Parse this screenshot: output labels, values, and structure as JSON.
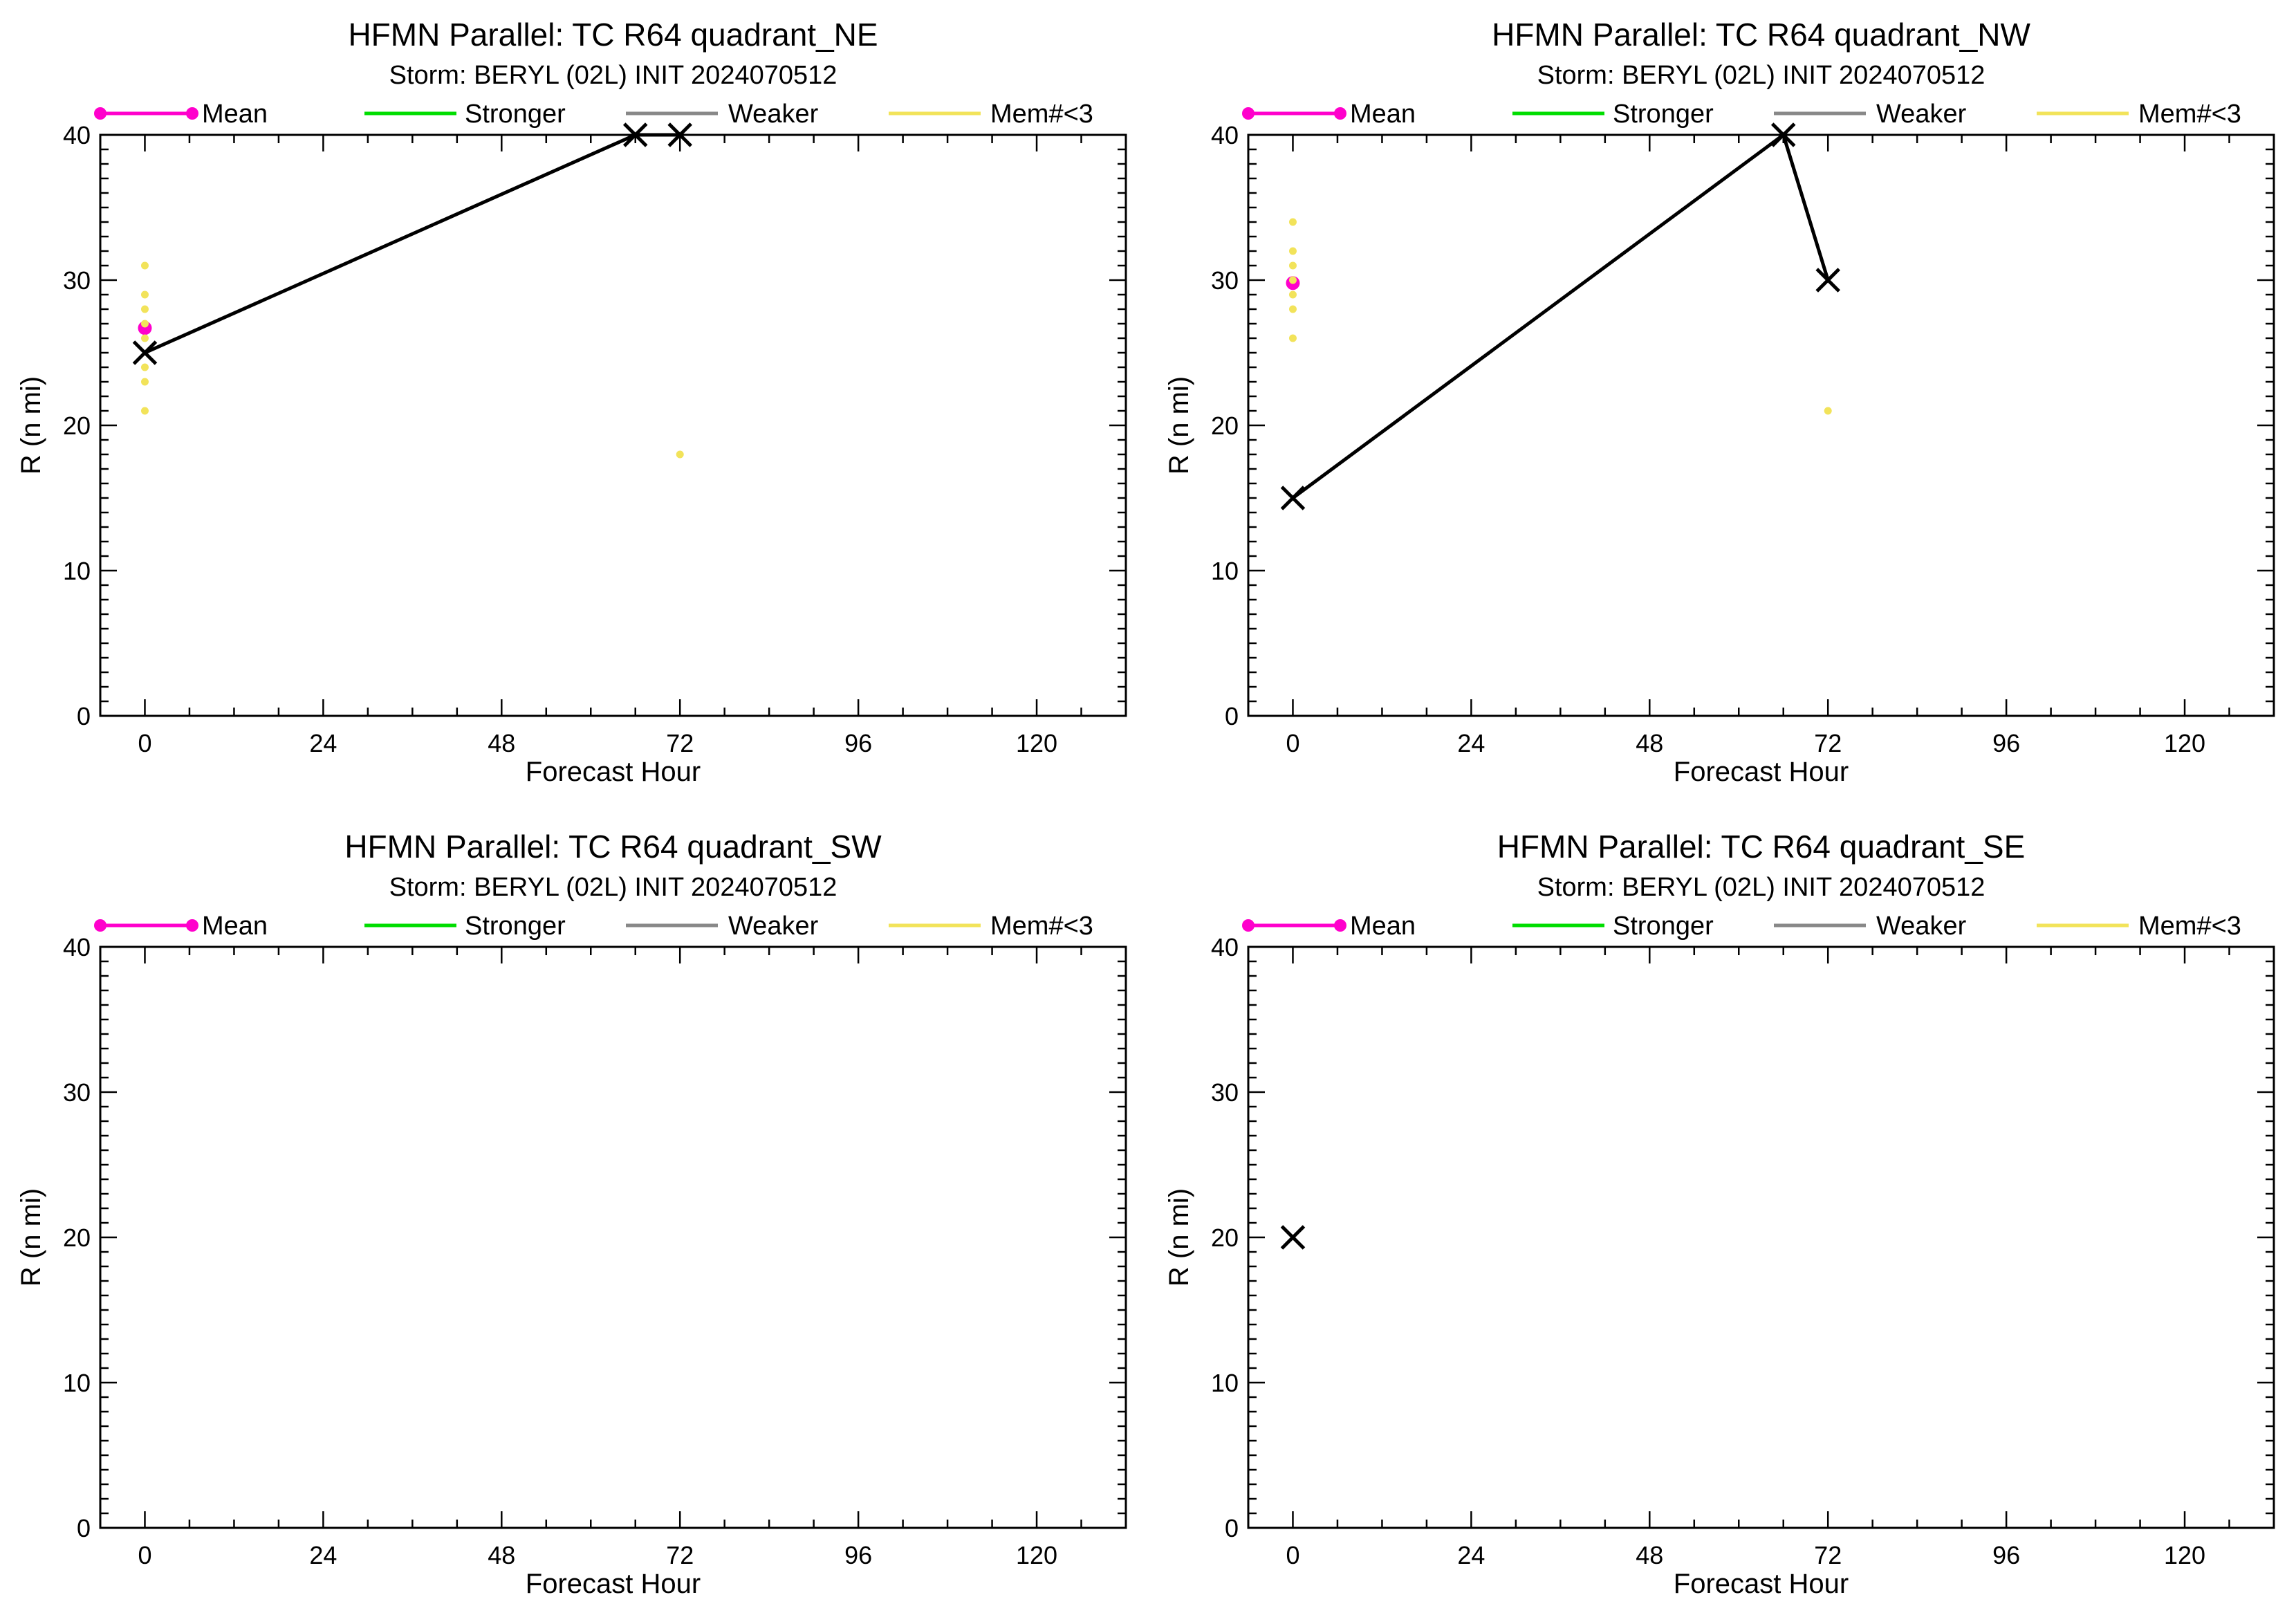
{
  "colors": {
    "mean": "#ff00cc",
    "stronger": "#00dd00",
    "weaker": "#888888",
    "members": "#f2e35a",
    "best_track": "#000000"
  },
  "legend": {
    "mean": "Mean",
    "stronger": "Stronger",
    "weaker": "Weaker",
    "members": "Mem#<3"
  },
  "chart_data": [
    {
      "type": "line",
      "title": "HFMN Parallel: TC  R64 quadrant_NE",
      "subtitle": "Storm: BERYL (02L) INIT 2024070512",
      "xlabel": "Forecast Hour",
      "ylabel": "R (n mi)",
      "xlim": [
        -6,
        132
      ],
      "ylim": [
        0,
        40
      ],
      "xticks": [
        0,
        24,
        48,
        72,
        96,
        120
      ],
      "yticks": [
        0,
        10,
        20,
        30,
        40
      ],
      "series": [
        {
          "name": "Mean",
          "x": [
            0
          ],
          "y": [
            26.7
          ]
        },
        {
          "name": "Mem#<3",
          "x": [
            0,
            0,
            0,
            0,
            0,
            0,
            0,
            0,
            72
          ],
          "y": [
            31,
            29,
            28,
            27,
            26,
            24,
            23,
            21,
            18
          ]
        },
        {
          "x": [
            0,
            66,
            72
          ],
          "y": [
            25,
            40,
            40
          ]
        }
      ]
    },
    {
      "type": "line",
      "title": "HFMN Parallel: TC  R64 quadrant_NW",
      "subtitle": "Storm: BERYL (02L) INIT 2024070512",
      "xlabel": "Forecast Hour",
      "ylabel": "R (n mi)",
      "xlim": [
        -6,
        132
      ],
      "ylim": [
        0,
        40
      ],
      "xticks": [
        0,
        24,
        48,
        72,
        96,
        120
      ],
      "yticks": [
        0,
        10,
        20,
        30,
        40
      ],
      "series": [
        {
          "name": "Mean",
          "x": [
            0
          ],
          "y": [
            29.8
          ]
        },
        {
          "name": "Mem#<3",
          "x": [
            0,
            0,
            0,
            0,
            0,
            0,
            0,
            72
          ],
          "y": [
            34,
            32,
            31,
            30,
            29,
            28,
            26,
            21
          ]
        },
        {
          "x": [
            0,
            66,
            72
          ],
          "y": [
            15,
            40,
            30
          ]
        }
      ]
    },
    {
      "type": "line",
      "title": "HFMN Parallel: TC  R64 quadrant_SW",
      "subtitle": "Storm: BERYL (02L) INIT 2024070512",
      "xlabel": "Forecast Hour",
      "ylabel": "R (n mi)",
      "xlim": [
        -6,
        132
      ],
      "ylim": [
        0,
        40
      ],
      "xticks": [
        0,
        24,
        48,
        72,
        96,
        120
      ],
      "yticks": [
        0,
        10,
        20,
        30,
        40
      ],
      "series": []
    },
    {
      "type": "line",
      "title": "HFMN Parallel: TC  R64 quadrant_SE",
      "subtitle": "Storm: BERYL (02L) INIT 2024070512",
      "xlabel": "Forecast Hour",
      "ylabel": "R (n mi)",
      "xlim": [
        -6,
        132
      ],
      "ylim": [
        0,
        40
      ],
      "xticks": [
        0,
        24,
        48,
        72,
        96,
        120
      ],
      "yticks": [
        0,
        10,
        20,
        30,
        40
      ],
      "series": [
        {
          "x": [
            0
          ],
          "y": [
            20
          ]
        }
      ]
    }
  ]
}
